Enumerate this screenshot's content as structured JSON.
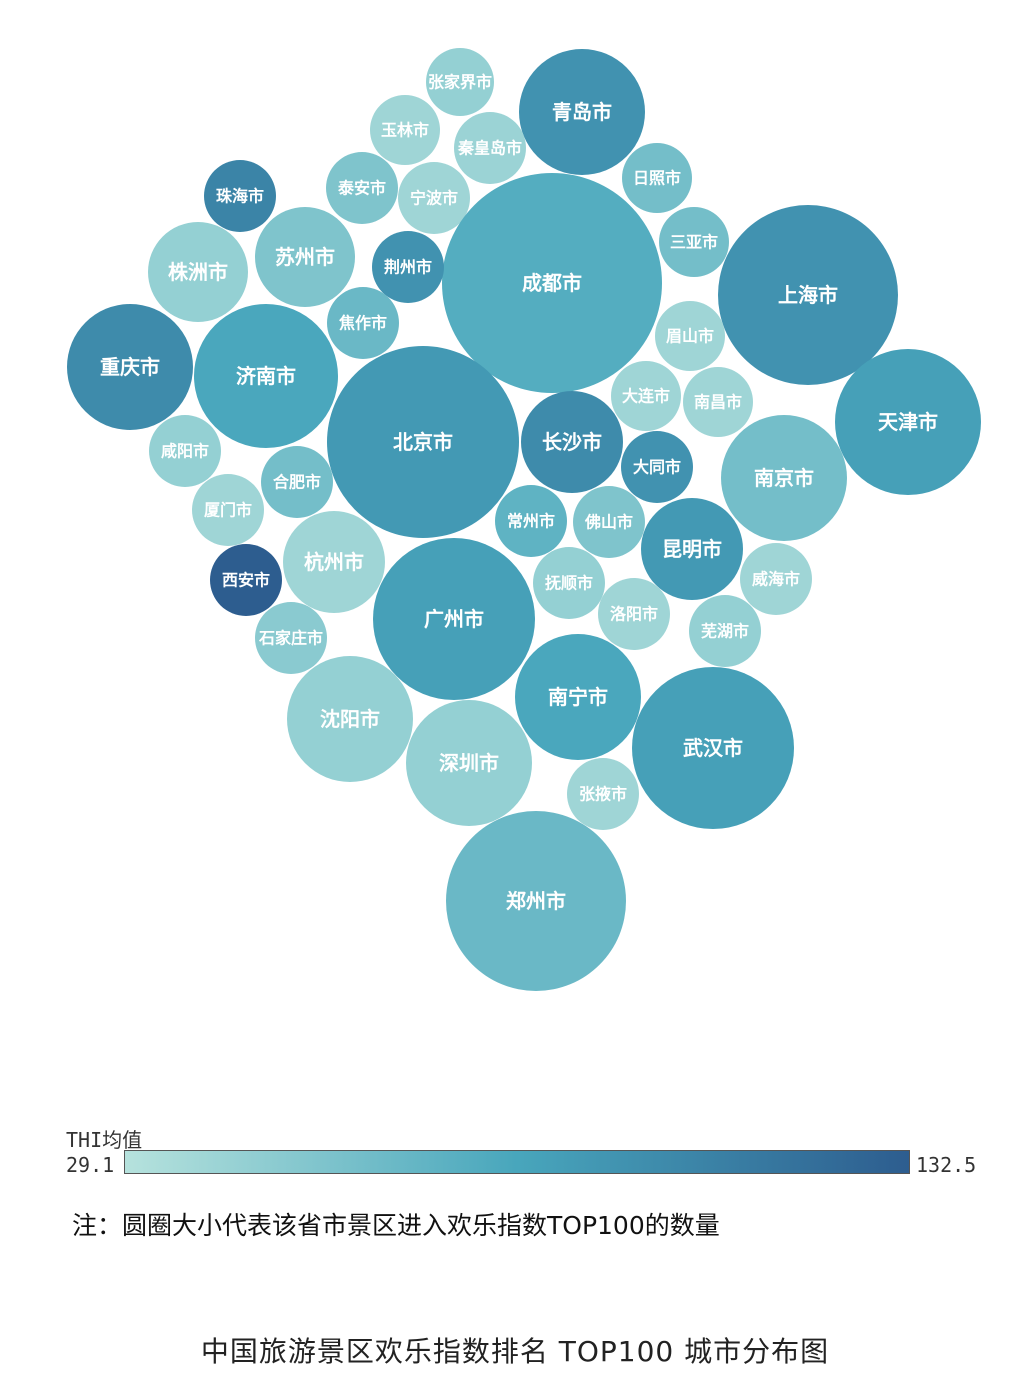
{
  "legend": {
    "title": "THI均值",
    "min_label": "29.1",
    "max_label": "132.5",
    "colors": [
      "#b6e2dd",
      "#48a6bc",
      "#2d5d8f"
    ]
  },
  "note": "注：圆圈大小代表该省市景区进入欢乐指数TOP100的数量",
  "caption": "中国旅游景区欢乐指数排名 TOP100 城市分布图",
  "chart_data": {
    "type": "bubble",
    "size_meaning": "该省市景区进入欢乐指数TOP100的数量",
    "color_meaning": "THI均值",
    "color_range": [
      29.1,
      132.5
    ],
    "cities": [
      {
        "name": "张家界市",
        "count": 1,
        "thi": 45
      },
      {
        "name": "青岛市",
        "count": 3,
        "thi": 95
      },
      {
        "name": "玉林市",
        "count": 1,
        "thi": 40
      },
      {
        "name": "秦皇岛市",
        "count": 1,
        "thi": 42
      },
      {
        "name": "日照市",
        "count": 1,
        "thi": 60
      },
      {
        "name": "珠海市",
        "count": 1,
        "thi": 105
      },
      {
        "name": "泰安市",
        "count": 1,
        "thi": 55
      },
      {
        "name": "宁波市",
        "count": 1,
        "thi": 40
      },
      {
        "name": "成都市",
        "count": 8,
        "thi": 75
      },
      {
        "name": "三亚市",
        "count": 1,
        "thi": 60
      },
      {
        "name": "株洲市",
        "count": 2,
        "thi": 45
      },
      {
        "name": "苏州市",
        "count": 2,
        "thi": 55
      },
      {
        "name": "荆州市",
        "count": 1,
        "thi": 95
      },
      {
        "name": "上海市",
        "count": 6,
        "thi": 95
      },
      {
        "name": "重庆市",
        "count": 3,
        "thi": 100
      },
      {
        "name": "焦作市",
        "count": 1,
        "thi": 65
      },
      {
        "name": "济南市",
        "count": 4,
        "thi": 80
      },
      {
        "name": "眉山市",
        "count": 1,
        "thi": 40
      },
      {
        "name": "北京市",
        "count": 6,
        "thi": 90
      },
      {
        "name": "大连市",
        "count": 1,
        "thi": 40
      },
      {
        "name": "南昌市",
        "count": 1,
        "thi": 40
      },
      {
        "name": "天津市",
        "count": 4,
        "thi": 85
      },
      {
        "name": "咸阳市",
        "count": 1,
        "thi": 45
      },
      {
        "name": "长沙市",
        "count": 2,
        "thi": 100
      },
      {
        "name": "大同市",
        "count": 1,
        "thi": 95
      },
      {
        "name": "南京市",
        "count": 3,
        "thi": 60
      },
      {
        "name": "合肥市",
        "count": 1,
        "thi": 60
      },
      {
        "name": "厦门市",
        "count": 1,
        "thi": 40
      },
      {
        "name": "常州市",
        "count": 1,
        "thi": 70
      },
      {
        "name": "佛山市",
        "count": 1,
        "thi": 55
      },
      {
        "name": "昆明市",
        "count": 2,
        "thi": 90
      },
      {
        "name": "西安市",
        "count": 1,
        "thi": 132.5
      },
      {
        "name": "杭州市",
        "count": 2,
        "thi": 40
      },
      {
        "name": "广州市",
        "count": 5,
        "thi": 85
      },
      {
        "name": "抚顺市",
        "count": 1,
        "thi": 45
      },
      {
        "name": "洛阳市",
        "count": 1,
        "thi": 40
      },
      {
        "name": "威海市",
        "count": 1,
        "thi": 40
      },
      {
        "name": "石家庄市",
        "count": 1,
        "thi": 50
      },
      {
        "name": "芜湖市",
        "count": 1,
        "thi": 45
      },
      {
        "name": "南宁市",
        "count": 3,
        "thi": 80
      },
      {
        "name": "沈阳市",
        "count": 3,
        "thi": 45
      },
      {
        "name": "深圳市",
        "count": 3,
        "thi": 45
      },
      {
        "name": "武汉市",
        "count": 5,
        "thi": 85
      },
      {
        "name": "张掖市",
        "count": 1,
        "thi": 40
      },
      {
        "name": "郑州市",
        "count": 6,
        "thi": 65
      }
    ]
  }
}
